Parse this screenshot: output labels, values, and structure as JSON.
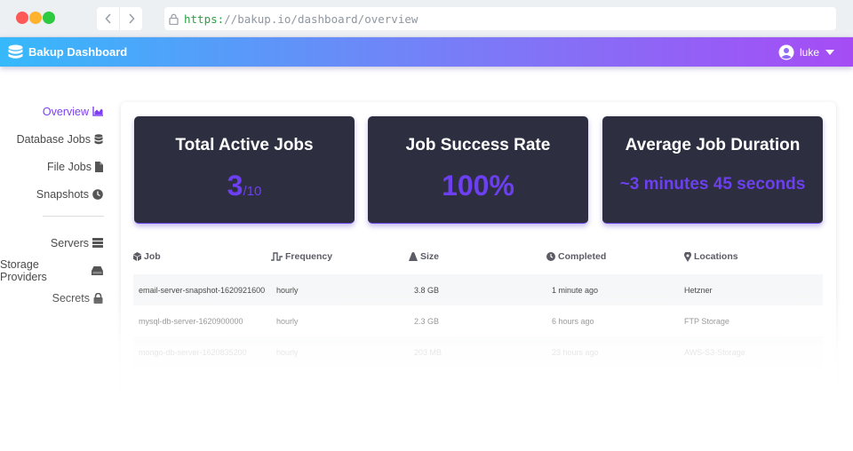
{
  "browser": {
    "url_scheme": "https:",
    "url_rest": "//bakup.io/dashboard/overview",
    "back_icon": "chevron-left-icon",
    "forward_icon": "chevron-right-icon",
    "lock_icon": "lock-icon"
  },
  "header": {
    "brand": "Bakup Dashboard",
    "username": "luke",
    "gradient_start": "#36b9fb",
    "gradient_end": "#a64cf5"
  },
  "sidebar": {
    "items": [
      {
        "label": "Overview",
        "icon": "chart-area-icon",
        "active": true
      },
      {
        "label": "Database Jobs",
        "icon": "database-icon"
      },
      {
        "label": "File Jobs",
        "icon": "file-icon"
      },
      {
        "label": "Snapshots",
        "icon": "clock-icon"
      },
      {
        "label": "Servers",
        "icon": "server-icon"
      },
      {
        "label": "Storage Providers",
        "icon": "hdd-icon"
      },
      {
        "label": "Secrets",
        "icon": "lock-icon"
      }
    ]
  },
  "stats": {
    "active_jobs": {
      "title": "Total Active Jobs",
      "value": "3",
      "total": "/10"
    },
    "success_rate": {
      "title": "Job Success Rate",
      "value": "100%"
    },
    "avg_duration": {
      "title": "Average Job Duration",
      "value": "~3 minutes 45 seconds"
    },
    "accent_color": "#6c3ff0",
    "card_bg": "#2d2f40"
  },
  "table": {
    "headers": [
      "Job",
      "Frequency",
      "Size",
      "Completed",
      "Locations"
    ],
    "rows": [
      [
        "email-server-snapshot-1620921600",
        "hourly",
        "3.8 GB",
        "1 minute ago",
        "Hetzner"
      ],
      [
        "mysql-db-server-1620900000",
        "hourly",
        "2.3 GB",
        "6 hours ago",
        "FTP Storage"
      ],
      [
        "mongo-db-server-1620835200",
        "hourly",
        "203 MB",
        "23 hours ago",
        "AWS-S3-Storage"
      ]
    ]
  }
}
